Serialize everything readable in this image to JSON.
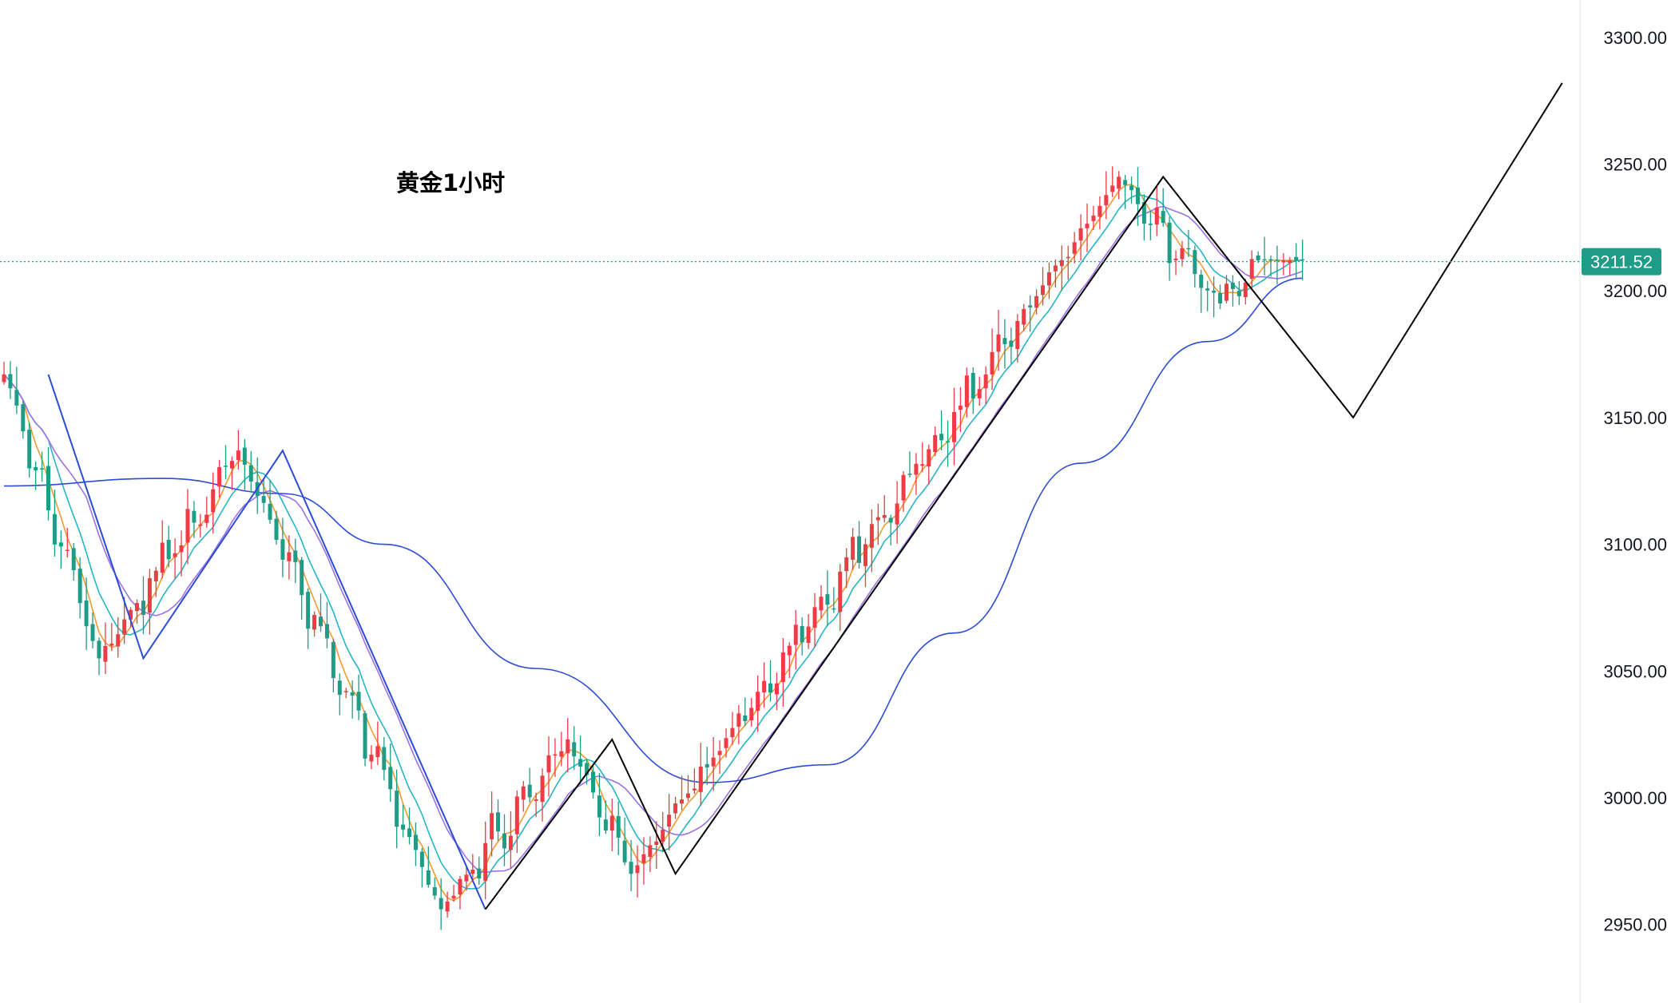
{
  "chart_data": {
    "type": "candlestick",
    "title": "黄金1小时",
    "y_ticks": [
      "3300.00",
      "3250.00",
      "3200.00",
      "3150.00",
      "3100.00",
      "3050.00",
      "3000.00",
      "2950.00"
    ],
    "y_tick_values": [
      3300,
      3250,
      3200,
      3150,
      3100,
      3050,
      3000,
      2950
    ],
    "ylim": [
      2919,
      3315
    ],
    "bar_count": 206,
    "current_price": 3211.52,
    "current_price_label": "3211.52",
    "grid": false,
    "colors": {
      "up": "#ef3b46",
      "down": "#1f9c86",
      "price_line": "#1f9c86",
      "price_tag": "#1f9c86",
      "ma_fast": "#f39a2f",
      "ma_mid": "#25b6c6",
      "ma_slow": "#9b72e2",
      "ma_long": "#2c4bd6",
      "wave_black": "#000000",
      "wave_blue": "#2c4bd6"
    },
    "key_points": [
      {
        "bar": 7,
        "price": 3167
      },
      {
        "bar": 22,
        "price": 3055
      },
      {
        "bar": 44,
        "price": 3137
      },
      {
        "bar": 76,
        "price": 2956
      },
      {
        "bar": 96,
        "price": 3023
      },
      {
        "bar": 106,
        "price": 2970
      },
      {
        "bar": 183,
        "price": 3245
      },
      {
        "bar": 199,
        "price": 3195
      },
      {
        "bar": 205,
        "price": 3212
      }
    ],
    "wave_blue_points": [
      {
        "bar": 7,
        "price": 3167
      },
      {
        "bar": 22,
        "price": 3055
      },
      {
        "bar": 44,
        "price": 3137
      },
      {
        "bar": 76,
        "price": 2956
      }
    ],
    "wave_black_points": [
      {
        "bar": 76,
        "price": 2956
      },
      {
        "bar": 96,
        "price": 3023
      },
      {
        "bar": 106,
        "price": 2970
      },
      {
        "bar": 183,
        "price": 3245
      },
      {
        "bar": 213,
        "price": 3150
      },
      {
        "bar": 246,
        "price": 3282
      }
    ],
    "ma_long_points": [
      {
        "bar": 0,
        "price": 3123
      },
      {
        "bar": 25,
        "price": 3126
      },
      {
        "bar": 44,
        "price": 3120
      },
      {
        "bar": 60,
        "price": 3100
      },
      {
        "bar": 84,
        "price": 3051
      },
      {
        "bar": 111,
        "price": 3006
      },
      {
        "bar": 130,
        "price": 3013
      },
      {
        "bar": 150,
        "price": 3065
      },
      {
        "bar": 170,
        "price": 3132
      },
      {
        "bar": 190,
        "price": 3180
      },
      {
        "bar": 205,
        "price": 3205
      }
    ]
  }
}
